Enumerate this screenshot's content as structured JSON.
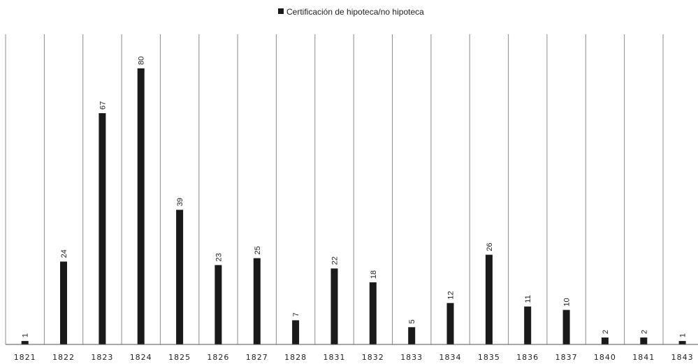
{
  "chart_data": {
    "type": "bar",
    "title": "",
    "xlabel": "",
    "ylabel": "",
    "categories": [
      "1821",
      "1822",
      "1823",
      "1824",
      "1825",
      "1826",
      "1827",
      "1828",
      "1831",
      "1832",
      "1833",
      "1834",
      "1835",
      "1836",
      "1837",
      "1840",
      "1841",
      "1843"
    ],
    "series": [
      {
        "name": "Certificación de hipoteca/no hipoteca",
        "values": [
          1,
          24,
          67,
          80,
          39,
          23,
          25,
          7,
          22,
          18,
          5,
          12,
          26,
          11,
          10,
          2,
          2,
          1
        ],
        "color": "#1a1a1a"
      }
    ],
    "ylim": [
      0,
      90
    ],
    "legend_position": "top-center",
    "grid": "vertical-category-separators",
    "data_labels": "rotated-vertical",
    "colors": {
      "bar": "#1a1a1a",
      "grid": "#8c8c8c",
      "axis": "#555555"
    }
  }
}
